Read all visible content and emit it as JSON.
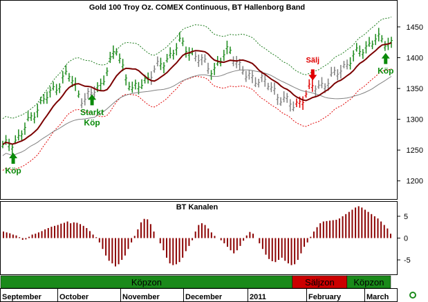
{
  "chart_data": [
    {
      "type": "ohlc",
      "title": "Gold 100 Troy Oz. COMEX Continuous, BT Hallenborg Band",
      "ylim": [
        1175,
        1460
      ],
      "yticks": [
        1200,
        1250,
        1300,
        1350,
        1400,
        1450
      ],
      "grid": false,
      "colors": {
        "buy": "#1a8a1a",
        "sell": "#e00000",
        "neutral": "#808080",
        "ma": "#7b0000",
        "band_upper": "#1a7a1a",
        "band_lower": "#e00000",
        "ma_long": "#808080"
      },
      "prices": [
        {
          "date": "Sep 1",
          "close": 1255
        },
        {
          "date": "Sep 15",
          "close": 1270
        },
        {
          "date": "Oct 1",
          "close": 1315
        },
        {
          "date": "Oct 8",
          "close": 1345
        },
        {
          "date": "Oct 14",
          "close": 1375
        },
        {
          "date": "Oct 22",
          "close": 1330
        },
        {
          "date": "Nov 1",
          "close": 1355
        },
        {
          "date": "Nov 9",
          "close": 1415
        },
        {
          "date": "Nov 16",
          "close": 1345
        },
        {
          "date": "Nov 23",
          "close": 1370
        },
        {
          "date": "Dec 1",
          "close": 1395
        },
        {
          "date": "Dec 7",
          "close": 1425
        },
        {
          "date": "Dec 14",
          "close": 1400
        },
        {
          "date": "Dec 21",
          "close": 1380
        },
        {
          "date": "Dec 31",
          "close": 1415
        },
        {
          "date": "Jan 7",
          "close": 1370
        },
        {
          "date": "Jan 14",
          "close": 1365
        },
        {
          "date": "Jan 21",
          "close": 1340
        },
        {
          "date": "Jan 28",
          "close": 1320
        },
        {
          "date": "Feb 4",
          "close": 1350
        },
        {
          "date": "Feb 11",
          "close": 1360
        },
        {
          "date": "Feb 18",
          "close": 1385
        },
        {
          "date": "Feb 25",
          "close": 1410
        },
        {
          "date": "Mar 3",
          "close": 1430
        },
        {
          "date": "Mar 8",
          "close": 1425
        }
      ],
      "annotations": [
        {
          "text": "Köp",
          "date": "Sep 10",
          "price": 1230,
          "color": "#0a8a0a",
          "direction": "up"
        },
        {
          "text": "Starkt",
          "text2": "Köp",
          "date": "Oct 20",
          "price": 1325,
          "color": "#0a8a0a",
          "direction": "up"
        },
        {
          "text": "Sälj",
          "date": "Jan 27",
          "price": 1372,
          "color": "#e00000",
          "direction": "down"
        },
        {
          "text": "Köp",
          "date": "Mar 9",
          "price": 1392,
          "color": "#0a8a0a",
          "direction": "up"
        }
      ]
    },
    {
      "type": "bar",
      "title": "BT Kanalen",
      "ylim": [
        -8,
        8
      ],
      "yticks": [
        5,
        0,
        -5
      ],
      "color": "#8b0000",
      "values": [
        1.5,
        1.3,
        1.1,
        0.8,
        0.6,
        0.2,
        -0.4,
        -0.3,
        0.3,
        0.8,
        1.0,
        1.3,
        1.6,
        2.0,
        2.3,
        2.6,
        2.8,
        3.0,
        3.3,
        3.5,
        3.8,
        3.4,
        3.6,
        3.5,
        3.2,
        2.8,
        2.3,
        1.6,
        0.8,
        0.2,
        -1.0,
        -2.5,
        -4.0,
        -5.2,
        -5.8,
        -6.5,
        -6.0,
        -5.0,
        -4.0,
        -2.5,
        -1.0,
        0.5,
        2.0,
        3.6,
        4.4,
        4.3,
        3.2,
        1.5,
        0.0,
        -1.2,
        -2.8,
        -4.5,
        -5.8,
        -6.2,
        -6.0,
        -5.5,
        -4.5,
        -3.0,
        -1.8,
        -0.5,
        1.5,
        3.0,
        3.4,
        3.0,
        2.2,
        1.3,
        0.5,
        0.0,
        -0.5,
        -1.2,
        -2.0,
        -2.8,
        -3.5,
        -2.8,
        -1.8,
        -0.6,
        0.6,
        1.4,
        1.0,
        0.0,
        -1.2,
        -2.5,
        -3.8,
        -4.8,
        -5.3,
        -5.5,
        -5.0,
        -4.5,
        -5.2,
        -5.8,
        -6.2,
        -6.0,
        -5.0,
        -3.5,
        -2.0,
        -1.0,
        0.3,
        1.5,
        2.5,
        3.4,
        3.8,
        3.9,
        4.0,
        4.1,
        4.2,
        4.5,
        5.0,
        5.5,
        6.0,
        6.5,
        7.0,
        7.3,
        7.0,
        6.5,
        6.0,
        5.5,
        5.0,
        4.5,
        3.8,
        3.0,
        2.2,
        1.0
      ]
    }
  ],
  "zones": [
    {
      "label": "Köpzon",
      "color": "#1a8a1a",
      "from": 0.0,
      "to": 0.748
    },
    {
      "label": "Säljzon",
      "color": "#cc0000",
      "from": 0.748,
      "to": 0.888
    },
    {
      "label": "Köpzon",
      "color": "#1a8a1a",
      "from": 0.888,
      "to": 1.0
    }
  ],
  "months": [
    "September",
    "October",
    "November",
    "December",
    "2011",
    "February",
    "March"
  ]
}
